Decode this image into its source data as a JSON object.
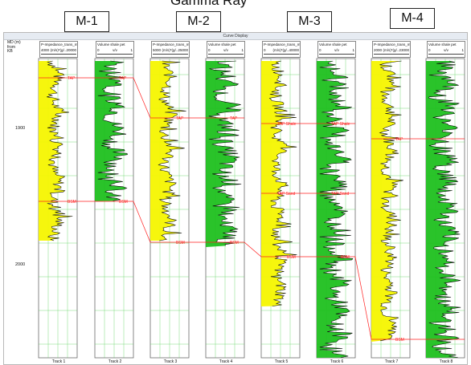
{
  "overlay": {
    "partial_title": "Gamma Ray",
    "wells": [
      "M-1",
      "M-2",
      "M-3",
      "M-4"
    ]
  },
  "window": {
    "title": "Curve Display",
    "md_label": "MD (m)\nfrom\nKB",
    "depth_ticks": [
      "1900",
      "2000"
    ]
  },
  "tracks": [
    {
      "label": "Track 1",
      "curve": "P-Impedance_trans_m",
      "lo": "4000",
      "unit": "(m/s)*(g/...",
      "hi": "20000",
      "kind": "imp"
    },
    {
      "label": "Track 2",
      "curve": "Volume shale pet",
      "lo": "0",
      "unit": "v/v",
      "hi": "1",
      "kind": "vsh"
    },
    {
      "label": "Track 3",
      "curve": "P-Impedance_trans_m",
      "lo": "5000",
      "unit": "(m/s)*(g/...",
      "hi": "25000",
      "kind": "imp"
    },
    {
      "label": "Track 4",
      "curve": "Volume shale pet",
      "lo": "0",
      "unit": "v/v",
      "hi": "1",
      "kind": "vsh"
    },
    {
      "label": "Track 5",
      "curve": "P-Impedance_trans_m",
      "lo": "0",
      "unit": "(m/s)*(g/...",
      "hi": "40000",
      "kind": "imp"
    },
    {
      "label": "Track 6",
      "curve": "Volume shale pet",
      "lo": "0",
      "unit": "v/v",
      "hi": "1",
      "kind": "vsh"
    },
    {
      "label": "Track 7",
      "curve": "P-Impedance_trans_m",
      "lo": "2000",
      "unit": "(m/s)*(g/...",
      "hi": "23000",
      "kind": "imp"
    },
    {
      "label": "Track 8",
      "curve": "Volume shale pet",
      "lo": "0",
      "unit": "v/v",
      "hi": "1",
      "kind": "vsh"
    }
  ],
  "markers": [
    "TAP",
    "BSM",
    "TAP Shale",
    "TAP Sand"
  ],
  "colors": {
    "accent": "#ff2020",
    "shale": "#1fc01f",
    "imp_fill": "#f5f500",
    "grid": "#5cd35c",
    "curve": "#000000"
  }
}
